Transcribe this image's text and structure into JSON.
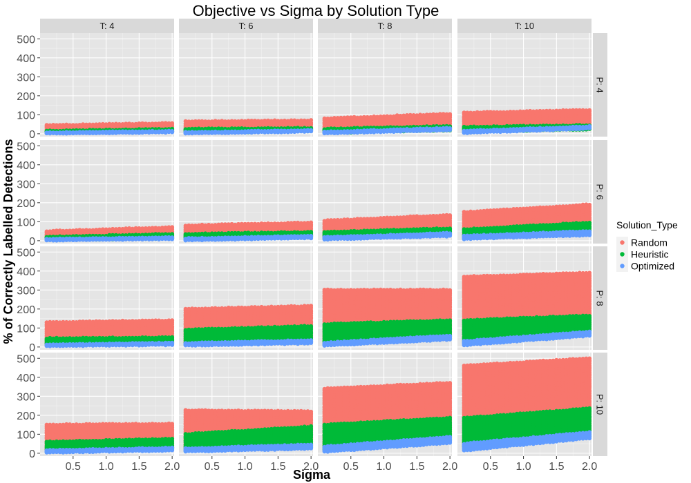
{
  "chart_data": {
    "type": "scatter",
    "title": "Objective vs Sigma by Solution Type",
    "xlabel": "Sigma",
    "ylabel": "% of Correctly Labelled Detections",
    "xlim": [
      0.0,
      2.03
    ],
    "ylim": [
      -15,
      530
    ],
    "x_ticks": [
      0.5,
      1.0,
      1.5,
      2.0
    ],
    "x_tick_labels": [
      "0.5",
      "1.0",
      "1.5",
      "2.0"
    ],
    "y_ticks": [
      0,
      100,
      200,
      300,
      400,
      500
    ],
    "y_tick_labels": [
      "0",
      "100",
      "200",
      "300",
      "400",
      "500"
    ],
    "sigma_values_start": 0.1,
    "sigma_values_end": 2.0,
    "sigma_values_step": 0.05,
    "facet_columns": [
      "T: 4",
      "T: 6",
      "T: 8",
      "T: 10"
    ],
    "facet_rows": [
      "P: 4",
      "P: 6",
      "P: 8",
      "P: 10"
    ],
    "legend": {
      "title": "Solution_Type",
      "position": "right",
      "entries": [
        "Random",
        "Heuristic",
        "Optimized"
      ]
    },
    "colors": {
      "Random": "#F8766D",
      "Heuristic": "#00BA38",
      "Optimized": "#619CFF",
      "panel_bg": "#E5E5E5",
      "strip_bg": "#D9D9D9",
      "grid": "#FFFFFF"
    },
    "series": [
      {
        "name": "Random",
        "panels": [
          {
            "row": "P: 4",
            "col": "T: 4",
            "range_at_min_sigma": [
              8,
              45
            ],
            "range_at_max_sigma": [
              12,
              55
            ]
          },
          {
            "row": "P: 4",
            "col": "T: 6",
            "range_at_min_sigma": [
              8,
              65
            ],
            "range_at_max_sigma": [
              15,
              70
            ]
          },
          {
            "row": "P: 4",
            "col": "T: 8",
            "range_at_min_sigma": [
              10,
              80
            ],
            "range_at_max_sigma": [
              25,
              105
            ]
          },
          {
            "row": "P: 4",
            "col": "T: 10",
            "range_at_min_sigma": [
              15,
              110
            ],
            "range_at_max_sigma": [
              30,
              125
            ]
          },
          {
            "row": "P: 6",
            "col": "T: 4",
            "range_at_min_sigma": [
              8,
              50
            ],
            "range_at_max_sigma": [
              15,
              70
            ]
          },
          {
            "row": "P: 6",
            "col": "T: 6",
            "range_at_min_sigma": [
              10,
              80
            ],
            "range_at_max_sigma": [
              25,
              95
            ]
          },
          {
            "row": "P: 6",
            "col": "T: 8",
            "range_at_min_sigma": [
              15,
              105
            ],
            "range_at_max_sigma": [
              35,
              135
            ]
          },
          {
            "row": "P: 6",
            "col": "T: 10",
            "range_at_min_sigma": [
              20,
              150
            ],
            "range_at_max_sigma": [
              40,
              190
            ]
          },
          {
            "row": "P: 8",
            "col": "T: 4",
            "range_at_min_sigma": [
              10,
              130
            ],
            "range_at_max_sigma": [
              20,
              140
            ]
          },
          {
            "row": "P: 8",
            "col": "T: 6",
            "range_at_min_sigma": [
              20,
              200
            ],
            "range_at_max_sigma": [
              40,
              215
            ]
          },
          {
            "row": "P: 8",
            "col": "T: 8",
            "range_at_min_sigma": [
              20,
              300
            ],
            "range_at_max_sigma": [
              50,
              300
            ]
          },
          {
            "row": "P: 8",
            "col": "T: 10",
            "range_at_min_sigma": [
              30,
              370
            ],
            "range_at_max_sigma": [
              80,
              390
            ]
          },
          {
            "row": "P: 10",
            "col": "T: 4",
            "range_at_min_sigma": [
              10,
              150
            ],
            "range_at_max_sigma": [
              20,
              155
            ]
          },
          {
            "row": "P: 10",
            "col": "T: 6",
            "range_at_min_sigma": [
              20,
              225
            ],
            "range_at_max_sigma": [
              40,
              220
            ]
          },
          {
            "row": "P: 10",
            "col": "T: 8",
            "range_at_min_sigma": [
              25,
              340
            ],
            "range_at_max_sigma": [
              80,
              370
            ]
          },
          {
            "row": "P: 10",
            "col": "T: 10",
            "range_at_min_sigma": [
              40,
              460
            ],
            "range_at_max_sigma": [
              110,
              500
            ]
          }
        ]
      },
      {
        "name": "Heuristic",
        "panels": [
          {
            "row": "P: 4",
            "col": "T: 4",
            "range_at_min_sigma": [
              5,
              15
            ],
            "range_at_max_sigma": [
              12,
              25
            ]
          },
          {
            "row": "P: 4",
            "col": "T: 6",
            "range_at_min_sigma": [
              5,
              25
            ],
            "range_at_max_sigma": [
              15,
              30
            ]
          },
          {
            "row": "P: 4",
            "col": "T: 8",
            "range_at_min_sigma": [
              5,
              25
            ],
            "range_at_max_sigma": [
              20,
              40
            ]
          },
          {
            "row": "P: 4",
            "col": "T: 10",
            "range_at_min_sigma": [
              10,
              35
            ],
            "range_at_max_sigma": [
              25,
              45
            ]
          },
          {
            "row": "P: 6",
            "col": "T: 4",
            "range_at_min_sigma": [
              5,
              20
            ],
            "range_at_max_sigma": [
              12,
              35
            ]
          },
          {
            "row": "P: 6",
            "col": "T: 6",
            "range_at_min_sigma": [
              8,
              35
            ],
            "range_at_max_sigma": [
              20,
              45
            ]
          },
          {
            "row": "P: 6",
            "col": "T: 8",
            "range_at_min_sigma": [
              12,
              45
            ],
            "range_at_max_sigma": [
              30,
              65
            ]
          },
          {
            "row": "P: 6",
            "col": "T: 10",
            "range_at_min_sigma": [
              15,
              60
            ],
            "range_at_max_sigma": [
              35,
              95
            ]
          },
          {
            "row": "P: 8",
            "col": "T: 4",
            "range_at_min_sigma": [
              10,
              45
            ],
            "range_at_max_sigma": [
              20,
              50
            ]
          },
          {
            "row": "P: 8",
            "col": "T: 6",
            "range_at_min_sigma": [
              15,
              90
            ],
            "range_at_max_sigma": [
              30,
              110
            ]
          },
          {
            "row": "P: 8",
            "col": "T: 8",
            "range_at_min_sigma": [
              15,
              120
            ],
            "range_at_max_sigma": [
              45,
              140
            ]
          },
          {
            "row": "P: 8",
            "col": "T: 10",
            "range_at_min_sigma": [
              25,
              140
            ],
            "range_at_max_sigma": [
              70,
              165
            ]
          },
          {
            "row": "P: 10",
            "col": "T: 4",
            "range_at_min_sigma": [
              10,
              60
            ],
            "range_at_max_sigma": [
              20,
              75
            ]
          },
          {
            "row": "P: 10",
            "col": "T: 6",
            "range_at_min_sigma": [
              15,
              100
            ],
            "range_at_max_sigma": [
              35,
              140
            ]
          },
          {
            "row": "P: 10",
            "col": "T: 8",
            "range_at_min_sigma": [
              20,
              150
            ],
            "range_at_max_sigma": [
              65,
              185
            ]
          },
          {
            "row": "P: 10",
            "col": "T: 10",
            "range_at_min_sigma": [
              35,
              185
            ],
            "range_at_max_sigma": [
              90,
              235
            ]
          }
        ]
      },
      {
        "name": "Optimized",
        "panels": [
          {
            "row": "P: 4",
            "col": "T: 4",
            "range_at_min_sigma": [
              2,
              6
            ],
            "range_at_max_sigma": [
              8,
              14
            ]
          },
          {
            "row": "P: 4",
            "col": "T: 6",
            "range_at_min_sigma": [
              3,
              8
            ],
            "range_at_max_sigma": [
              12,
              18
            ]
          },
          {
            "row": "P: 4",
            "col": "T: 8",
            "range_at_min_sigma": [
              3,
              10
            ],
            "range_at_max_sigma": [
              20,
              30
            ]
          },
          {
            "row": "P: 4",
            "col": "T: 10",
            "range_at_min_sigma": [
              5,
              15
            ],
            "range_at_max_sigma": [
              28,
              38
            ]
          },
          {
            "row": "P: 6",
            "col": "T: 4",
            "range_at_min_sigma": [
              2,
              8
            ],
            "range_at_max_sigma": [
              10,
              18
            ]
          },
          {
            "row": "P: 6",
            "col": "T: 6",
            "range_at_min_sigma": [
              3,
              12
            ],
            "range_at_max_sigma": [
              15,
              25
            ]
          },
          {
            "row": "P: 6",
            "col": "T: 8",
            "range_at_min_sigma": [
              8,
              18
            ],
            "range_at_max_sigma": [
              25,
              40
            ]
          },
          {
            "row": "P: 6",
            "col": "T: 10",
            "range_at_min_sigma": [
              10,
              25
            ],
            "range_at_max_sigma": [
              30,
              50
            ]
          },
          {
            "row": "P: 8",
            "col": "T: 4",
            "range_at_min_sigma": [
              5,
              12
            ],
            "range_at_max_sigma": [
              12,
              22
            ]
          },
          {
            "row": "P: 8",
            "col": "T: 6",
            "range_at_min_sigma": [
              8,
              20
            ],
            "range_at_max_sigma": [
              20,
              35
            ]
          },
          {
            "row": "P: 8",
            "col": "T: 8",
            "range_at_min_sigma": [
              8,
              22
            ],
            "range_at_max_sigma": [
              40,
              60
            ]
          },
          {
            "row": "P: 8",
            "col": "T: 10",
            "range_at_min_sigma": [
              10,
              30
            ],
            "range_at_max_sigma": [
              60,
              80
            ]
          },
          {
            "row": "P: 10",
            "col": "T: 4",
            "range_at_min_sigma": [
              5,
              15
            ],
            "range_at_max_sigma": [
              15,
              28
            ]
          },
          {
            "row": "P: 10",
            "col": "T: 6",
            "range_at_min_sigma": [
              10,
              25
            ],
            "range_at_max_sigma": [
              25,
              45
            ]
          },
          {
            "row": "P: 10",
            "col": "T: 8",
            "range_at_min_sigma": [
              8,
              35
            ],
            "range_at_max_sigma": [
              55,
              85
            ]
          },
          {
            "row": "P: 10",
            "col": "T: 10",
            "range_at_min_sigma": [
              15,
              50
            ],
            "range_at_max_sigma": [
              80,
              110
            ]
          }
        ]
      }
    ]
  }
}
